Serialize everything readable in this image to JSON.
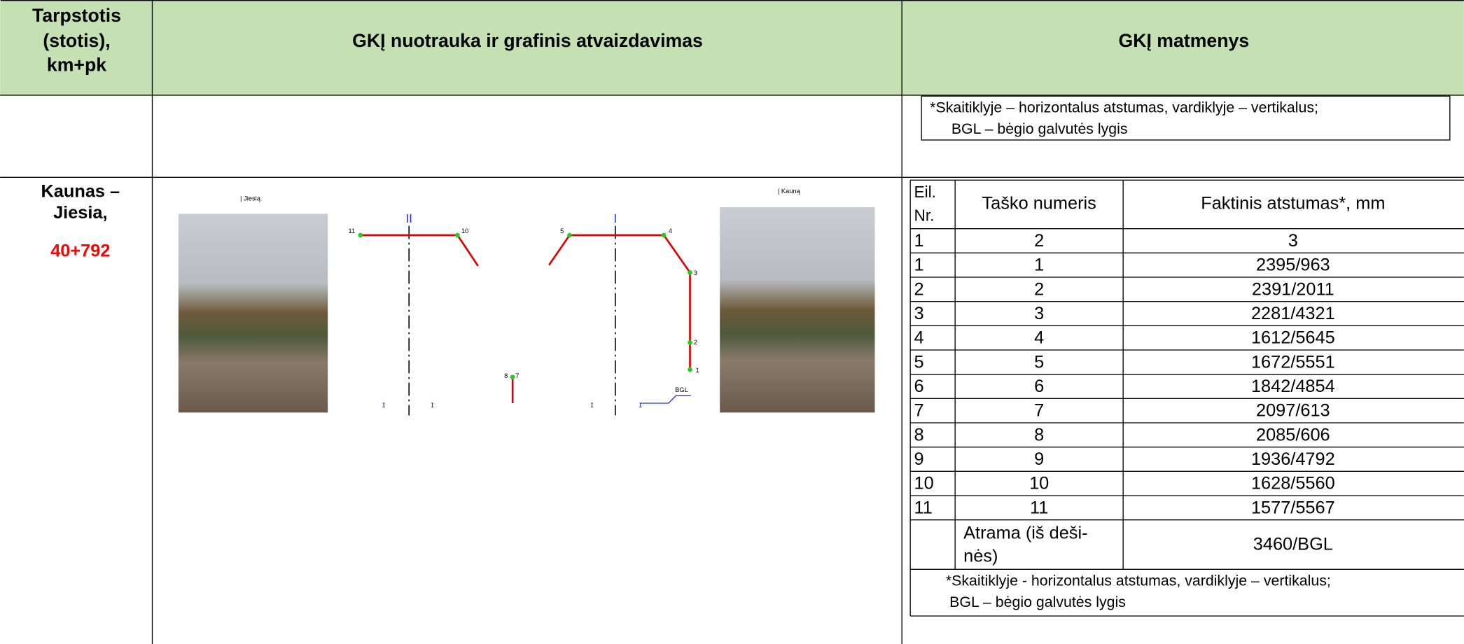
{
  "header": {
    "col1": [
      "Tarpstotis",
      "(stotis),",
      "km+pk"
    ],
    "col2": "GKĮ nuotrauka ir grafinis atvaizdavimas",
    "col3": "GKĮ matmenys"
  },
  "note_top": [
    "*Skaitiklyje – horizontalus atstumas, vardiklyje – vertikalus;",
    "BGL – bėgio galvutės lygis"
  ],
  "location": {
    "name": [
      "Kaunas –",
      "Jiesia,"
    ],
    "km": "40+792"
  },
  "figure": {
    "left_photo_caption": "| Jiesią",
    "right_photo_caption": "| Kauną",
    "track_left": "II",
    "track_right": "I",
    "points": [
      "1",
      "2",
      "3",
      "4",
      "5",
      "8",
      "7",
      "10",
      "11"
    ],
    "bgl": "BGL"
  },
  "table": {
    "header": [
      [
        "Eil.",
        "Nr."
      ],
      "Taško numeris",
      "Faktinis atstumas*, mm"
    ],
    "column_numbers": [
      "1",
      "2",
      "3"
    ],
    "rows": [
      [
        "1",
        "1",
        "2395/963"
      ],
      [
        "2",
        "2",
        "2391/2011"
      ],
      [
        "3",
        "3",
        "2281/4321"
      ],
      [
        "4",
        "4",
        "1612/5645"
      ],
      [
        "5",
        "5",
        "1672/5551"
      ],
      [
        "6",
        "6",
        "1842/4854"
      ],
      [
        "7",
        "7",
        "2097/613"
      ],
      [
        "8",
        "8",
        "2085/606"
      ],
      [
        "9",
        "9",
        "1936/4792"
      ],
      [
        "10",
        "10",
        "1628/5560"
      ],
      [
        "11",
        "11",
        "1577/5567"
      ]
    ],
    "support": {
      "label": [
        "Atrama (iš deši-",
        "nės)"
      ],
      "value": "3460/BGL"
    }
  },
  "note_bottom": [
    "*Skaitiklyje - horizontalus atstumas, vardiklyje – vertikalus;",
    "BGL – bėgio galvutės lygis"
  ]
}
